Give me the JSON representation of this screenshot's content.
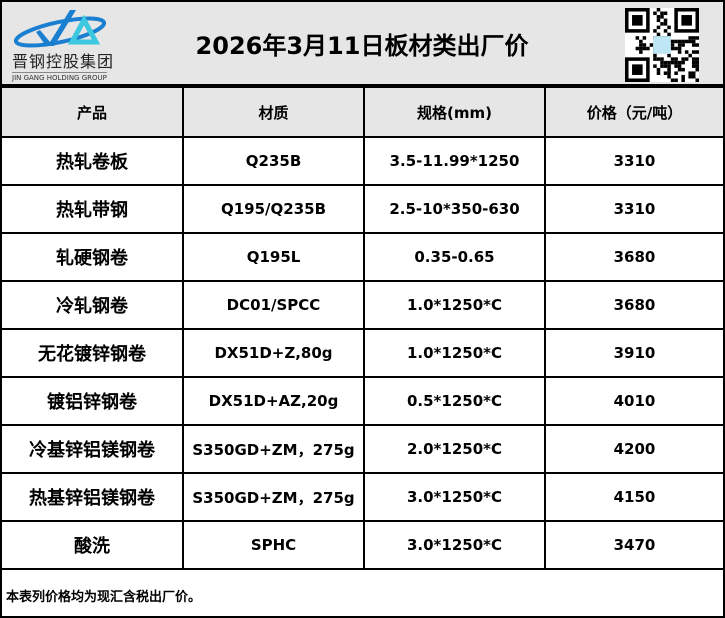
{
  "header": {
    "company_cn": "晋钢控股集团",
    "company_en": "JIN GANG HOLDING GROUP",
    "title": "2026年3月11日板材类出厂价"
  },
  "table": {
    "columns": [
      "产品",
      "材质",
      "规格(mm)",
      "价格（元/吨）"
    ],
    "rows": [
      [
        "热轧卷板",
        "Q235B",
        "3.5-11.99*1250",
        "3310"
      ],
      [
        "热轧带钢",
        "Q195/Q235B",
        "2.5-10*350-630",
        "3310"
      ],
      [
        "轧硬钢卷",
        "Q195L",
        "0.35-0.65",
        "3680"
      ],
      [
        "冷轧钢卷",
        "DC01/SPCC",
        "1.0*1250*C",
        "3680"
      ],
      [
        "无花镀锌钢卷",
        "DX51D+Z,80g",
        "1.0*1250*C",
        "3910"
      ],
      [
        "镀铝锌钢卷",
        "DX51D+AZ,20g",
        "0.5*1250*C",
        "4010"
      ],
      [
        "冷基锌铝镁钢卷",
        "S350GD+ZM，275g",
        "2.0*1250*C",
        "4200"
      ],
      [
        "热基锌铝镁钢卷",
        "S350GD+ZM，275g",
        "3.0*1250*C",
        "4150"
      ],
      [
        "酸洗",
        "SPHC",
        "3.0*1250*C",
        "3470"
      ]
    ]
  },
  "footer": {
    "note": "本表列价格均为现汇含税出厂价。"
  },
  "colors": {
    "header_bg": "#e6e6e6",
    "logo_blue": "#1a7fd0",
    "logo_cyan": "#3cc8e0"
  }
}
